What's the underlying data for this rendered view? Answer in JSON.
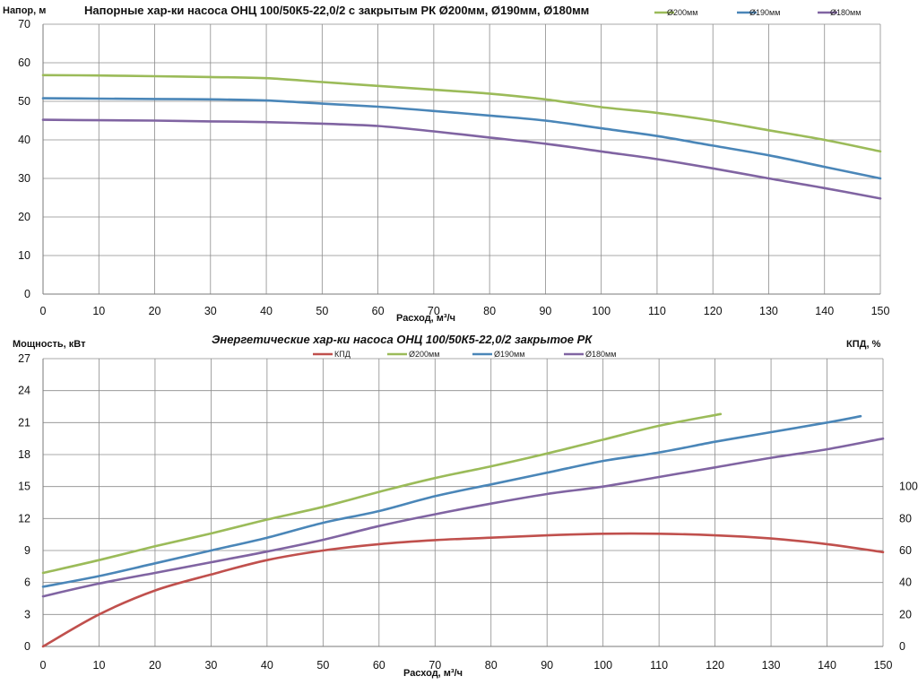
{
  "chart_data": [
    {
      "type": "line",
      "title": "Напорные хар-ки насоса ОНЦ 100/50К5-22,0/2 с закрытым РК Ø200мм, Ø190мм, Ø180мм",
      "ylabel": "Напор, м",
      "xlabel": "Расход, м³/ч",
      "xlim": [
        0,
        150
      ],
      "ylim": [
        0,
        70
      ],
      "xticks": [
        "0",
        "10",
        "20",
        "30",
        "40",
        "50",
        "60",
        "70",
        "80",
        "90",
        "100",
        "110",
        "120",
        "130",
        "140",
        "150"
      ],
      "yticks": [
        "0",
        "10",
        "20",
        "30",
        "40",
        "50",
        "60",
        "70"
      ],
      "grid": true,
      "legend_position": "top-right",
      "series": [
        {
          "name": "Ø200мм",
          "color": "#9bbb59",
          "points": [
            [
              0,
              56.8
            ],
            [
              10,
              56.7
            ],
            [
              20,
              56.5
            ],
            [
              30,
              56.3
            ],
            [
              40,
              56.0
            ],
            [
              50,
              55.0
            ],
            [
              60,
              54.0
            ],
            [
              70,
              53.0
            ],
            [
              80,
              52.0
            ],
            [
              90,
              50.5
            ],
            [
              100,
              48.5
            ],
            [
              110,
              47.0
            ],
            [
              120,
              45.0
            ],
            [
              130,
              42.5
            ],
            [
              140,
              40.0
            ],
            [
              150,
              37.0
            ]
          ]
        },
        {
          "name": "Ø190мм",
          "color": "#4a86b8",
          "points": [
            [
              0,
              50.8
            ],
            [
              10,
              50.7
            ],
            [
              20,
              50.6
            ],
            [
              30,
              50.5
            ],
            [
              40,
              50.2
            ],
            [
              50,
              49.4
            ],
            [
              60,
              48.6
            ],
            [
              70,
              47.5
            ],
            [
              80,
              46.3
            ],
            [
              90,
              45.0
            ],
            [
              100,
              43.0
            ],
            [
              110,
              41.0
            ],
            [
              120,
              38.5
            ],
            [
              130,
              36.0
            ],
            [
              140,
              33.0
            ],
            [
              150,
              30.0
            ]
          ]
        },
        {
          "name": "Ø180мм",
          "color": "#8064a2",
          "points": [
            [
              0,
              45.2
            ],
            [
              10,
              45.1
            ],
            [
              20,
              45.0
            ],
            [
              30,
              44.8
            ],
            [
              40,
              44.6
            ],
            [
              50,
              44.2
            ],
            [
              60,
              43.6
            ],
            [
              70,
              42.2
            ],
            [
              80,
              40.6
            ],
            [
              90,
              39.0
            ],
            [
              100,
              37.0
            ],
            [
              110,
              35.0
            ],
            [
              120,
              32.6
            ],
            [
              130,
              30.0
            ],
            [
              140,
              27.5
            ],
            [
              150,
              24.8
            ]
          ]
        }
      ]
    },
    {
      "type": "line",
      "title": "Энергетические хар-ки насоса ОНЦ 100/50К5-22,0/2 закрытое РК",
      "ylabel": "Мощность, кВт",
      "y2label": "КПД, %",
      "xlabel": "Расход, м³/ч",
      "xlim": [
        0,
        150
      ],
      "ylim": [
        0,
        27
      ],
      "y2lim": [
        0,
        180
      ],
      "xticks": [
        "0",
        "10",
        "20",
        "30",
        "40",
        "50",
        "60",
        "70",
        "80",
        "90",
        "100",
        "110",
        "120",
        "130",
        "140",
        "150"
      ],
      "yticks": [
        "0",
        "3",
        "6",
        "9",
        "12",
        "15",
        "18",
        "21",
        "24",
        "27"
      ],
      "y2ticks": [
        "0",
        "20",
        "40",
        "60",
        "80",
        "100"
      ],
      "grid": true,
      "legend_position": "top",
      "series": [
        {
          "name": "КПД",
          "color": "#c0504d",
          "axis": "right",
          "points": [
            [
              0,
              0
            ],
            [
              10,
              20
            ],
            [
              20,
              35
            ],
            [
              30,
              45
            ],
            [
              40,
              54
            ],
            [
              50,
              60
            ],
            [
              60,
              64
            ],
            [
              70,
              66.5
            ],
            [
              80,
              68
            ],
            [
              90,
              69.5
            ],
            [
              100,
              70.5
            ],
            [
              110,
              70.5
            ],
            [
              120,
              69.5
            ],
            [
              130,
              67.5
            ],
            [
              140,
              64
            ],
            [
              150,
              59
            ]
          ]
        },
        {
          "name": "Ø200мм",
          "color": "#9bbb59",
          "axis": "left",
          "points": [
            [
              0,
              6.9
            ],
            [
              10,
              8.1
            ],
            [
              20,
              9.4
            ],
            [
              30,
              10.6
            ],
            [
              40,
              11.9
            ],
            [
              50,
              13.1
            ],
            [
              60,
              14.5
            ],
            [
              70,
              15.8
            ],
            [
              80,
              16.9
            ],
            [
              90,
              18.1
            ],
            [
              100,
              19.4
            ],
            [
              110,
              20.7
            ],
            [
              121,
              21.8
            ]
          ]
        },
        {
          "name": "Ø190мм",
          "color": "#4a86b8",
          "axis": "left",
          "points": [
            [
              0,
              5.6
            ],
            [
              10,
              6.6
            ],
            [
              20,
              7.8
            ],
            [
              30,
              9.0
            ],
            [
              40,
              10.2
            ],
            [
              50,
              11.6
            ],
            [
              60,
              12.7
            ],
            [
              70,
              14.1
            ],
            [
              80,
              15.2
            ],
            [
              90,
              16.3
            ],
            [
              100,
              17.4
            ],
            [
              110,
              18.2
            ],
            [
              120,
              19.2
            ],
            [
              130,
              20.1
            ],
            [
              140,
              21.0
            ],
            [
              146,
              21.6
            ]
          ]
        },
        {
          "name": "Ø180мм",
          "color": "#8064a2",
          "axis": "left",
          "points": [
            [
              0,
              4.7
            ],
            [
              10,
              5.9
            ],
            [
              20,
              6.9
            ],
            [
              30,
              7.9
            ],
            [
              40,
              8.9
            ],
            [
              50,
              10.0
            ],
            [
              60,
              11.3
            ],
            [
              70,
              12.4
            ],
            [
              80,
              13.4
            ],
            [
              90,
              14.3
            ],
            [
              100,
              15.0
            ],
            [
              110,
              15.9
            ],
            [
              120,
              16.8
            ],
            [
              130,
              17.7
            ],
            [
              140,
              18.5
            ],
            [
              150,
              19.5
            ]
          ]
        }
      ]
    }
  ]
}
